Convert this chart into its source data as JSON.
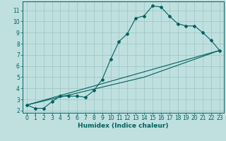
{
  "xlabel": "Humidex (Indice chaleur)",
  "bg_color": "#c0e0e0",
  "line_color": "#006060",
  "grid_color": "#a0c8c8",
  "xlim": [
    -0.5,
    23.5
  ],
  "ylim": [
    1.8,
    11.8
  ],
  "yticks": [
    2,
    3,
    4,
    5,
    6,
    7,
    8,
    9,
    10,
    11
  ],
  "xticks": [
    0,
    1,
    2,
    3,
    4,
    5,
    6,
    7,
    8,
    9,
    10,
    11,
    12,
    13,
    14,
    15,
    16,
    17,
    18,
    19,
    20,
    21,
    22,
    23
  ],
  "line1_x": [
    0,
    1,
    2,
    3,
    4,
    5,
    6,
    7,
    8,
    9,
    10,
    11,
    12,
    13,
    14,
    15,
    16,
    17,
    18,
    19,
    20,
    21,
    22,
    23
  ],
  "line1_y": [
    2.5,
    2.2,
    2.2,
    2.8,
    3.3,
    3.3,
    3.3,
    3.2,
    3.8,
    4.8,
    6.6,
    8.2,
    8.9,
    10.3,
    10.5,
    11.4,
    11.3,
    10.5,
    9.8,
    9.6,
    9.6,
    9.0,
    8.3,
    7.4
  ],
  "line2_x": [
    0,
    23
  ],
  "line2_y": [
    2.5,
    7.4
  ],
  "line3_x": [
    0,
    14,
    23
  ],
  "line3_y": [
    2.5,
    5.0,
    7.4
  ],
  "tick_fontsize": 5.5,
  "xlabel_fontsize": 6.5
}
